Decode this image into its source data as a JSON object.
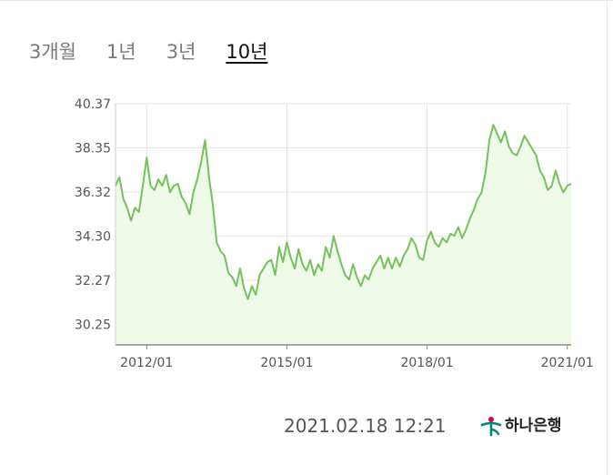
{
  "tabs": [
    {
      "label": "3개월",
      "active": false
    },
    {
      "label": "1년",
      "active": false
    },
    {
      "label": "3년",
      "active": false
    },
    {
      "label": "10년",
      "active": true
    }
  ],
  "footer": {
    "timestamp": "2021.02.18 12:21",
    "brand": "하나은행",
    "brand_icon": "hana-bank-logo-icon"
  },
  "colors": {
    "line": "#74c25a",
    "fill": "#eefbe8",
    "grid": "#e3e3e3",
    "axis": "#8a8a8a"
  },
  "chart_data": {
    "type": "area",
    "title": "",
    "xlabel": "",
    "ylabel": "",
    "yticks": [
      "40.37",
      "38.35",
      "36.32",
      "34.30",
      "32.27",
      "30.25"
    ],
    "xticks": [
      "2012/01",
      "2015/01",
      "2018/01",
      "2021/01"
    ],
    "ylim": [
      29.3,
      40.37
    ],
    "xlim": [
      "2011/05",
      "2021/02"
    ],
    "grid": true,
    "legend": "none",
    "series": [
      {
        "x": [
          "2011/05",
          "2011/06",
          "2011/07",
          "2011/08",
          "2011/09",
          "2011/10",
          "2011/11",
          "2011/12",
          "2012/01",
          "2012/02",
          "2012/03",
          "2012/04",
          "2012/05",
          "2012/06",
          "2012/07",
          "2012/08",
          "2012/09",
          "2012/10",
          "2012/11",
          "2012/12",
          "2013/01",
          "2013/02",
          "2013/03",
          "2013/04",
          "2013/05",
          "2013/06",
          "2013/07",
          "2013/08",
          "2013/09",
          "2013/10",
          "2013/11",
          "2013/12",
          "2014/01",
          "2014/02",
          "2014/03",
          "2014/04",
          "2014/05",
          "2014/06",
          "2014/07",
          "2014/08",
          "2014/09",
          "2014/10",
          "2014/11",
          "2014/12",
          "2015/01",
          "2015/02",
          "2015/03",
          "2015/04",
          "2015/05",
          "2015/06",
          "2015/07",
          "2015/08",
          "2015/09",
          "2015/10",
          "2015/11",
          "2015/12",
          "2016/01",
          "2016/02",
          "2016/03",
          "2016/04",
          "2016/05",
          "2016/06",
          "2016/07",
          "2016/08",
          "2016/09",
          "2016/10",
          "2016/11",
          "2016/12",
          "2017/01",
          "2017/02",
          "2017/03",
          "2017/04",
          "2017/05",
          "2017/06",
          "2017/07",
          "2017/08",
          "2017/09",
          "2017/10",
          "2017/11",
          "2017/12",
          "2018/01",
          "2018/02",
          "2018/03",
          "2018/04",
          "2018/05",
          "2018/06",
          "2018/07",
          "2018/08",
          "2018/09",
          "2018/10",
          "2018/11",
          "2018/12",
          "2019/01",
          "2019/02",
          "2019/03",
          "2019/04",
          "2019/05",
          "2019/06",
          "2019/07",
          "2019/08",
          "2019/09",
          "2019/10",
          "2019/11",
          "2019/12",
          "2020/01",
          "2020/02",
          "2020/03",
          "2020/04",
          "2020/05",
          "2020/06",
          "2020/07",
          "2020/08",
          "2020/09",
          "2020/10",
          "2020/11",
          "2020/12",
          "2021/01",
          "2021/02"
        ],
        "values": [
          36.6,
          37.0,
          36.0,
          35.6,
          35.0,
          35.6,
          35.4,
          36.6,
          37.9,
          36.6,
          36.4,
          36.9,
          36.6,
          37.1,
          36.3,
          36.6,
          36.7,
          36.1,
          35.8,
          35.3,
          36.3,
          36.9,
          37.7,
          38.7,
          37.0,
          35.7,
          34.0,
          33.6,
          33.4,
          32.6,
          32.4,
          32.0,
          32.8,
          31.9,
          31.4,
          32.0,
          31.6,
          32.5,
          32.8,
          33.1,
          33.2,
          32.5,
          33.8,
          33.1,
          34.0,
          33.3,
          32.8,
          33.7,
          33.0,
          32.7,
          33.2,
          32.5,
          33.0,
          32.7,
          33.8,
          33.3,
          34.3,
          33.6,
          33.0,
          32.5,
          32.3,
          33.0,
          32.4,
          32.0,
          32.5,
          32.3,
          32.8,
          33.1,
          33.4,
          32.8,
          33.3,
          32.8,
          33.3,
          32.9,
          33.4,
          33.7,
          34.2,
          33.9,
          33.3,
          33.2,
          34.1,
          34.5,
          34.0,
          33.8,
          34.2,
          34.0,
          34.4,
          34.3,
          34.7,
          34.2,
          34.6,
          35.1,
          35.5,
          36.0,
          36.3,
          37.2,
          38.7,
          39.4,
          39.0,
          38.6,
          39.1,
          38.4,
          38.1,
          38.0,
          38.4,
          38.9,
          38.6,
          38.3,
          38.0,
          37.3,
          37.0,
          36.4,
          36.6,
          37.3,
          36.7,
          36.3,
          36.6,
          36.7
        ]
      }
    ]
  }
}
